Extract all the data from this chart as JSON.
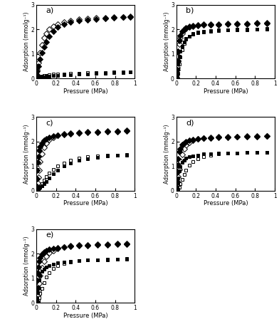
{
  "panel_titles": [
    "a)",
    "b)",
    "c)",
    "d)",
    "e)"
  ],
  "xlabel": "Pressure (MPa)",
  "ylabel": "Adsorption (mmolg⁻¹)",
  "xlim": [
    0,
    1.0
  ],
  "ylim": [
    0,
    3
  ],
  "yticks": [
    0,
    1,
    2,
    3
  ],
  "xticks": [
    0.0,
    0.2,
    0.4,
    0.6,
    0.8,
    1.0
  ],
  "xticklabels": [
    "0",
    "0.2",
    "0.4",
    "0.6",
    "0.8",
    "1"
  ],
  "yticklabels": [
    "0",
    "1",
    "2",
    "3"
  ],
  "panel_a": {
    "C2H6_ads_x": [
      0.005,
      0.01,
      0.02,
      0.04,
      0.06,
      0.08,
      0.1,
      0.13,
      0.17,
      0.22,
      0.28,
      0.35,
      0.43,
      0.52,
      0.61,
      0.7,
      0.79,
      0.88,
      0.95
    ],
    "C2H6_ads_y": [
      0.15,
      0.3,
      0.5,
      0.8,
      1.05,
      1.3,
      1.5,
      1.72,
      1.92,
      2.1,
      2.22,
      2.3,
      2.36,
      2.4,
      2.43,
      2.45,
      2.47,
      2.49,
      2.5
    ],
    "C2H6_des_x": [
      0.95,
      0.88,
      0.79,
      0.7,
      0.61,
      0.52,
      0.43,
      0.35,
      0.28,
      0.22,
      0.17,
      0.13,
      0.1,
      0.08,
      0.06,
      0.04,
      0.02,
      0.01,
      0.005
    ],
    "C2H6_des_y": [
      2.52,
      2.51,
      2.5,
      2.48,
      2.46,
      2.44,
      2.41,
      2.37,
      2.3,
      2.22,
      2.12,
      2.0,
      1.85,
      1.65,
      1.38,
      1.05,
      0.65,
      0.35,
      0.12
    ],
    "CH4_ads_x": [
      0.005,
      0.01,
      0.02,
      0.04,
      0.06,
      0.08,
      0.1,
      0.13,
      0.17,
      0.22,
      0.28,
      0.35,
      0.43,
      0.52,
      0.61,
      0.7,
      0.79,
      0.88,
      0.95
    ],
    "CH4_ads_y": [
      0.01,
      0.02,
      0.03,
      0.05,
      0.06,
      0.08,
      0.09,
      0.11,
      0.12,
      0.14,
      0.16,
      0.17,
      0.19,
      0.2,
      0.21,
      0.22,
      0.23,
      0.25,
      0.27
    ],
    "CH4_des_x": [
      0.95,
      0.88,
      0.79,
      0.7,
      0.61,
      0.52,
      0.43,
      0.35,
      0.28,
      0.22,
      0.17,
      0.13,
      0.1,
      0.08,
      0.06,
      0.04,
      0.02,
      0.01,
      0.005
    ],
    "CH4_des_y": [
      0.28,
      0.27,
      0.26,
      0.25,
      0.24,
      0.23,
      0.22,
      0.21,
      0.2,
      0.19,
      0.18,
      0.16,
      0.14,
      0.12,
      0.1,
      0.07,
      0.04,
      0.02,
      0.01
    ]
  },
  "panel_b": {
    "C2H6_ads_x": [
      0.003,
      0.006,
      0.01,
      0.015,
      0.02,
      0.03,
      0.04,
      0.06,
      0.08,
      0.1,
      0.13,
      0.17,
      0.22,
      0.28,
      0.35,
      0.43,
      0.52,
      0.62,
      0.72,
      0.82,
      0.92
    ],
    "C2H6_ads_y": [
      0.05,
      0.15,
      0.35,
      0.7,
      1.1,
      1.55,
      1.75,
      1.92,
      2.0,
      2.05,
      2.1,
      2.13,
      2.15,
      2.17,
      2.18,
      2.19,
      2.2,
      2.21,
      2.22,
      2.23,
      2.25
    ],
    "C2H6_des_x": [
      0.92,
      0.82,
      0.72,
      0.62,
      0.52,
      0.43,
      0.35,
      0.28,
      0.22,
      0.17,
      0.13,
      0.1,
      0.08,
      0.06,
      0.04,
      0.03,
      0.02,
      0.015,
      0.01,
      0.006,
      0.003
    ],
    "C2H6_des_y": [
      2.27,
      2.26,
      2.25,
      2.24,
      2.23,
      2.22,
      2.21,
      2.2,
      2.18,
      2.16,
      2.12,
      2.06,
      1.98,
      1.85,
      1.65,
      1.4,
      1.08,
      0.75,
      0.45,
      0.2,
      0.05
    ],
    "CH4_ads_x": [
      0.003,
      0.006,
      0.01,
      0.015,
      0.02,
      0.03,
      0.04,
      0.06,
      0.08,
      0.1,
      0.13,
      0.17,
      0.22,
      0.28,
      0.35,
      0.43,
      0.52,
      0.62,
      0.72,
      0.82,
      0.92
    ],
    "CH4_ads_y": [
      0.03,
      0.08,
      0.18,
      0.38,
      0.6,
      0.92,
      1.1,
      1.32,
      1.5,
      1.62,
      1.72,
      1.8,
      1.86,
      1.9,
      1.93,
      1.95,
      1.97,
      1.98,
      1.99,
      2.0,
      2.01
    ],
    "CH4_des_x": [
      0.92,
      0.82,
      0.72,
      0.62,
      0.52,
      0.43,
      0.35,
      0.28,
      0.22,
      0.17,
      0.13,
      0.1,
      0.08,
      0.06,
      0.04,
      0.03,
      0.02,
      0.015,
      0.01,
      0.006,
      0.003
    ],
    "CH4_des_y": [
      2.03,
      2.02,
      2.01,
      2.0,
      1.99,
      1.98,
      1.96,
      1.93,
      1.89,
      1.83,
      1.73,
      1.6,
      1.42,
      1.18,
      0.88,
      0.6,
      0.38,
      0.22,
      0.12,
      0.05,
      0.01
    ]
  },
  "panel_c": {
    "C2H6_ads_x": [
      0.003,
      0.006,
      0.01,
      0.015,
      0.02,
      0.03,
      0.04,
      0.06,
      0.08,
      0.1,
      0.13,
      0.17,
      0.22,
      0.28,
      0.35,
      0.43,
      0.52,
      0.62,
      0.72,
      0.82,
      0.92
    ],
    "C2H6_ads_y": [
      0.2,
      0.5,
      0.85,
      1.15,
      1.4,
      1.65,
      1.8,
      1.95,
      2.05,
      2.12,
      2.18,
      2.22,
      2.26,
      2.29,
      2.32,
      2.34,
      2.36,
      2.38,
      2.4,
      2.41,
      2.43
    ],
    "C2H6_des_x": [
      0.92,
      0.82,
      0.72,
      0.62,
      0.52,
      0.43,
      0.35,
      0.28,
      0.22,
      0.17,
      0.13,
      0.1,
      0.08,
      0.06,
      0.04,
      0.03,
      0.02,
      0.015,
      0.01,
      0.006,
      0.003
    ],
    "C2H6_des_y": [
      2.45,
      2.44,
      2.43,
      2.41,
      2.39,
      2.37,
      2.34,
      2.3,
      2.25,
      2.18,
      2.08,
      1.94,
      1.75,
      1.5,
      1.18,
      0.85,
      0.55,
      0.32,
      0.15,
      0.06,
      0.02
    ],
    "CH4_ads_x": [
      0.003,
      0.006,
      0.01,
      0.015,
      0.02,
      0.03,
      0.04,
      0.06,
      0.08,
      0.1,
      0.13,
      0.17,
      0.22,
      0.28,
      0.35,
      0.43,
      0.52,
      0.62,
      0.72,
      0.82,
      0.92
    ],
    "CH4_ads_y": [
      0.01,
      0.02,
      0.03,
      0.05,
      0.07,
      0.1,
      0.14,
      0.2,
      0.28,
      0.38,
      0.52,
      0.68,
      0.85,
      1.0,
      1.13,
      1.23,
      1.31,
      1.37,
      1.41,
      1.44,
      1.46
    ],
    "CH4_des_x": [
      0.92,
      0.82,
      0.72,
      0.62,
      0.52,
      0.43,
      0.35,
      0.28,
      0.22,
      0.17,
      0.13,
      0.1,
      0.08,
      0.06,
      0.04,
      0.03,
      0.02,
      0.015,
      0.01,
      0.006,
      0.003
    ],
    "CH4_des_y": [
      1.48,
      1.46,
      1.44,
      1.42,
      1.38,
      1.32,
      1.24,
      1.14,
      1.02,
      0.88,
      0.73,
      0.58,
      0.43,
      0.3,
      0.18,
      0.1,
      0.05,
      0.03,
      0.01,
      0.005,
      0.002
    ]
  },
  "panel_d": {
    "C2H6_ads_x": [
      0.003,
      0.006,
      0.01,
      0.015,
      0.02,
      0.03,
      0.04,
      0.06,
      0.08,
      0.1,
      0.13,
      0.17,
      0.22,
      0.28,
      0.35,
      0.43,
      0.52,
      0.62,
      0.72,
      0.82,
      0.92
    ],
    "C2H6_ads_y": [
      0.15,
      0.4,
      0.75,
      1.05,
      1.3,
      1.58,
      1.72,
      1.87,
      1.95,
      2.0,
      2.05,
      2.08,
      2.11,
      2.13,
      2.15,
      2.17,
      2.18,
      2.19,
      2.2,
      2.21,
      2.22
    ],
    "C2H6_des_x": [
      0.92,
      0.82,
      0.72,
      0.62,
      0.52,
      0.43,
      0.35,
      0.28,
      0.22,
      0.17,
      0.13,
      0.1,
      0.08,
      0.06,
      0.04,
      0.03,
      0.02,
      0.015,
      0.01,
      0.006,
      0.003
    ],
    "C2H6_des_y": [
      2.24,
      2.23,
      2.22,
      2.21,
      2.2,
      2.19,
      2.17,
      2.14,
      2.1,
      2.05,
      1.97,
      1.86,
      1.7,
      1.48,
      1.2,
      0.88,
      0.58,
      0.34,
      0.16,
      0.06,
      0.02
    ],
    "CH4_ads_x": [
      0.003,
      0.006,
      0.01,
      0.015,
      0.02,
      0.03,
      0.04,
      0.06,
      0.08,
      0.1,
      0.13,
      0.17,
      0.22,
      0.28,
      0.35,
      0.43,
      0.52,
      0.62,
      0.72,
      0.82,
      0.92
    ],
    "CH4_ads_y": [
      0.02,
      0.06,
      0.15,
      0.32,
      0.52,
      0.8,
      0.97,
      1.15,
      1.25,
      1.32,
      1.38,
      1.42,
      1.46,
      1.49,
      1.51,
      1.52,
      1.53,
      1.54,
      1.55,
      1.55,
      1.56
    ],
    "CH4_des_x": [
      0.92,
      0.82,
      0.72,
      0.62,
      0.52,
      0.43,
      0.35,
      0.28,
      0.22,
      0.17,
      0.13,
      0.1,
      0.08,
      0.06,
      0.04,
      0.03,
      0.02,
      0.015,
      0.01,
      0.006,
      0.003
    ],
    "CH4_des_y": [
      1.57,
      1.56,
      1.55,
      1.54,
      1.52,
      1.49,
      1.45,
      1.39,
      1.3,
      1.18,
      1.03,
      0.85,
      0.66,
      0.46,
      0.28,
      0.15,
      0.07,
      0.03,
      0.01,
      0.005,
      0.001
    ]
  },
  "panel_e": {
    "C2H6_ads_x": [
      0.003,
      0.006,
      0.01,
      0.015,
      0.02,
      0.03,
      0.04,
      0.06,
      0.08,
      0.1,
      0.13,
      0.17,
      0.22,
      0.28,
      0.35,
      0.43,
      0.52,
      0.62,
      0.72,
      0.82,
      0.92
    ],
    "C2H6_ads_y": [
      0.2,
      0.55,
      0.92,
      1.22,
      1.45,
      1.7,
      1.85,
      1.98,
      2.07,
      2.13,
      2.18,
      2.22,
      2.25,
      2.28,
      2.3,
      2.32,
      2.34,
      2.36,
      2.37,
      2.38,
      2.4
    ],
    "C2H6_des_x": [
      0.92,
      0.82,
      0.72,
      0.62,
      0.52,
      0.43,
      0.35,
      0.28,
      0.22,
      0.17,
      0.13,
      0.1,
      0.08,
      0.06,
      0.04,
      0.03,
      0.02,
      0.015,
      0.01,
      0.006,
      0.003
    ],
    "C2H6_des_y": [
      2.42,
      2.41,
      2.4,
      2.39,
      2.37,
      2.35,
      2.32,
      2.28,
      2.22,
      2.14,
      2.03,
      1.88,
      1.68,
      1.42,
      1.12,
      0.8,
      0.5,
      0.28,
      0.13,
      0.05,
      0.01
    ],
    "CH4_ads_x": [
      0.003,
      0.006,
      0.01,
      0.015,
      0.02,
      0.03,
      0.04,
      0.06,
      0.08,
      0.1,
      0.13,
      0.17,
      0.22,
      0.28,
      0.35,
      0.43,
      0.52,
      0.62,
      0.72,
      0.82,
      0.92
    ],
    "CH4_ads_y": [
      0.02,
      0.08,
      0.2,
      0.42,
      0.65,
      0.95,
      1.1,
      1.28,
      1.38,
      1.45,
      1.52,
      1.58,
      1.63,
      1.67,
      1.7,
      1.72,
      1.74,
      1.75,
      1.76,
      1.77,
      1.78
    ],
    "CH4_des_x": [
      0.92,
      0.82,
      0.72,
      0.62,
      0.52,
      0.43,
      0.35,
      0.28,
      0.22,
      0.17,
      0.13,
      0.1,
      0.08,
      0.06,
      0.04,
      0.03,
      0.02,
      0.015,
      0.01,
      0.006,
      0.003
    ],
    "CH4_des_y": [
      1.8,
      1.79,
      1.78,
      1.76,
      1.74,
      1.71,
      1.67,
      1.61,
      1.52,
      1.4,
      1.24,
      1.05,
      0.83,
      0.6,
      0.38,
      0.21,
      0.1,
      0.05,
      0.02,
      0.008,
      0.002
    ]
  }
}
